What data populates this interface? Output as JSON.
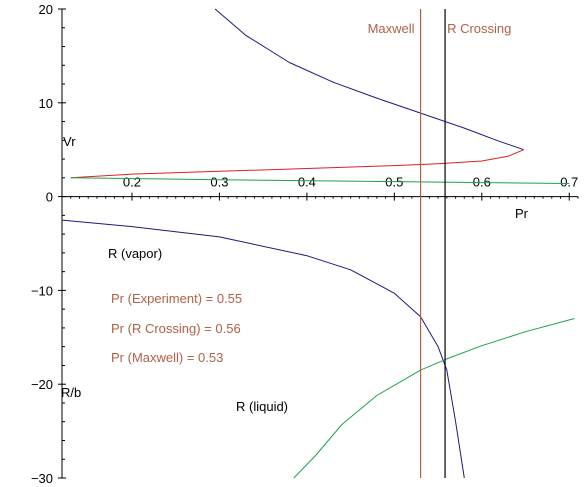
{
  "chart_data": {
    "type": "line",
    "x_axis": {
      "label": "Pr",
      "ticks": [
        0.2,
        0.3,
        0.4,
        0.5,
        0.6,
        0.7
      ],
      "range": [
        0.12,
        0.71
      ]
    },
    "y_axis": {
      "ticks": [
        20,
        10,
        0,
        -10,
        -20,
        -30
      ],
      "range": [
        -30,
        20
      ]
    },
    "axis_texts": {
      "vr": "Vr",
      "rb": "R/b"
    },
    "grid": false,
    "legend": "none",
    "vertical_lines": [
      {
        "name": "Maxwell",
        "x": 0.53,
        "color": "#b06048"
      },
      {
        "name": "R Crossing",
        "x": 0.558,
        "color": "#000000"
      }
    ],
    "series": [
      {
        "id": "vr-vapor",
        "color": "#1a1a80",
        "x": [
          0.295,
          0.33,
          0.38,
          0.43,
          0.48,
          0.53,
          0.58,
          0.62,
          0.648
        ],
        "y": [
          20,
          17.2,
          14.3,
          12.2,
          10.5,
          8.9,
          7.3,
          5.9,
          5.0
        ]
      },
      {
        "id": "vr-liquid",
        "color": "#e02020",
        "x": [
          0.13,
          0.2,
          0.3,
          0.4,
          0.5,
          0.55,
          0.6,
          0.63,
          0.648
        ],
        "y": [
          2.0,
          2.4,
          2.7,
          3.0,
          3.3,
          3.5,
          3.8,
          4.3,
          5.0
        ]
      },
      {
        "id": "vr-green",
        "color": "#20a050",
        "x": [
          0.13,
          0.3,
          0.5,
          0.7
        ],
        "y": [
          2.0,
          1.8,
          1.6,
          1.4
        ]
      },
      {
        "id": "r-vapor",
        "color": "#1a1a80",
        "x": [
          0.12,
          0.2,
          0.3,
          0.4,
          0.45,
          0.5,
          0.53,
          0.55,
          0.56,
          0.57,
          0.58
        ],
        "y": [
          -2.5,
          -3.2,
          -4.3,
          -6.3,
          -7.8,
          -10.3,
          -12.8,
          -16.0,
          -18.5,
          -24.0,
          -30.0
        ]
      },
      {
        "id": "r-liquid",
        "color": "#20a050",
        "x": [
          0.385,
          0.41,
          0.44,
          0.48,
          0.53,
          0.56,
          0.6,
          0.65,
          0.706
        ],
        "y": [
          -30.0,
          -27.6,
          -24.3,
          -21.2,
          -18.5,
          -17.3,
          -15.9,
          -14.4,
          -13.0
        ]
      }
    ],
    "annotations": {
      "r_vapor": "R (vapor)",
      "r_liquid": "R (liquid)",
      "pr_experiment": "Pr (Experiment) = 0.55",
      "pr_r_crossing": "Pr (R Crossing) = 0.56",
      "pr_maxwell": "Pr (Maxwell) = 0.53"
    },
    "annotation_color": "#b06048"
  }
}
